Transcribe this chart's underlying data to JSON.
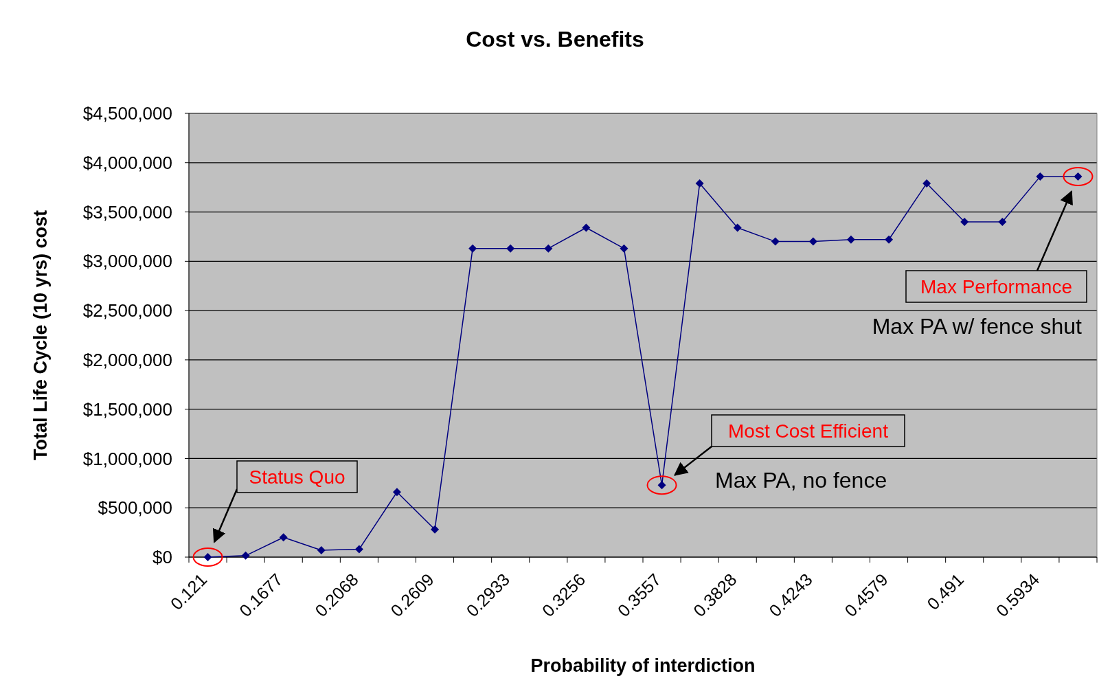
{
  "chart_data": {
    "type": "line",
    "title": "Cost vs. Benefits",
    "xlabel": "Probability of interdiction",
    "ylabel": "Total Life Cycle (10 yrs) cost",
    "categories": [
      "0.121",
      null,
      "0.1677",
      null,
      "0.2068",
      null,
      "0.2609",
      null,
      "0.2933",
      null,
      "0.3256",
      null,
      "0.3557",
      null,
      "0.3828",
      null,
      "0.4243",
      null,
      "0.4579",
      null,
      "0.491",
      null,
      "0.5934",
      null
    ],
    "series": [
      {
        "color": "#000080",
        "values": [
          0,
          15000,
          200000,
          70000,
          80000,
          660000,
          280000,
          3130000,
          3130000,
          3130000,
          3340000,
          3130000,
          730000,
          3790000,
          3340000,
          3200000,
          3200000,
          3220000,
          3220000,
          3790000,
          3400000,
          3400000,
          3860000,
          3860000
        ]
      }
    ],
    "ylim": [
      0,
      4500000
    ],
    "yticks": [
      {
        "value": 0,
        "label": "$0"
      },
      {
        "value": 500000,
        "label": "$500,000"
      },
      {
        "value": 1000000,
        "label": "$1,000,000"
      },
      {
        "value": 1500000,
        "label": "$1,500,000"
      },
      {
        "value": 2000000,
        "label": "$2,000,000"
      },
      {
        "value": 2500000,
        "label": "$2,500,000"
      },
      {
        "value": 3000000,
        "label": "$3,000,000"
      },
      {
        "value": 3500000,
        "label": "$3,500,000"
      },
      {
        "value": 4000000,
        "label": "$4,000,000"
      },
      {
        "value": 4500000,
        "label": "$4,500,000"
      }
    ],
    "grid": "y",
    "marker": "diamond",
    "line_style": "solid",
    "annotations": [
      "Status Quo",
      "Most Cost Efficient",
      "Max PA, no fence",
      "Max Performance",
      "Max PA w/ fence shut"
    ]
  }
}
